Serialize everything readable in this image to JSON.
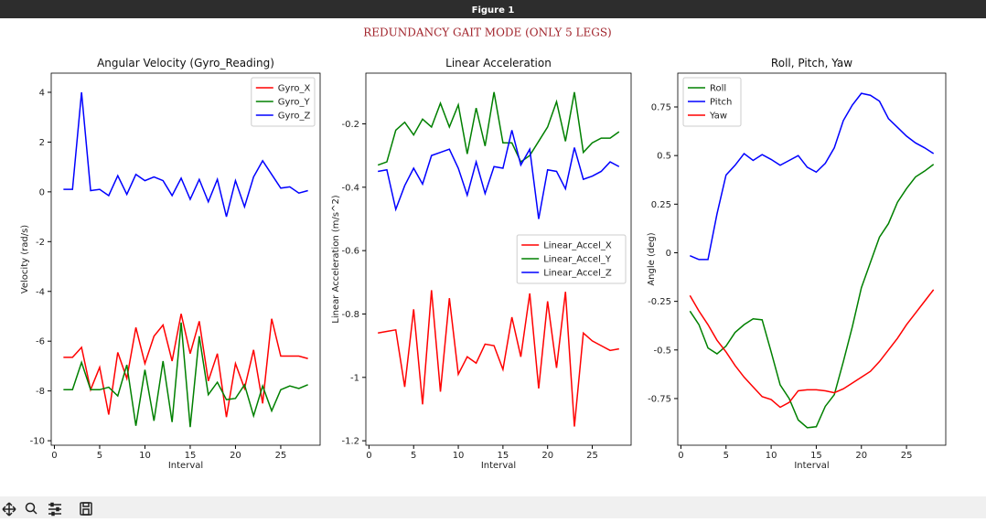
{
  "window_title": "Figure 1",
  "suptitle": "REDUNDANCY GAIT MODE (ONLY 5 LEGS)",
  "chart_data": [
    {
      "type": "line",
      "title": "Angular Velocity (Gyro_Reading)",
      "xlabel": "Interval",
      "ylabel": "Velocity (rad/s)",
      "x": [
        1,
        2,
        3,
        4,
        5,
        6,
        7,
        8,
        9,
        10,
        11,
        12,
        13,
        14,
        15,
        16,
        17,
        18,
        19,
        20,
        21,
        22,
        23,
        24,
        25,
        26,
        27,
        28
      ],
      "xlim": [
        -0.35,
        29.35
      ],
      "xticks": [
        0,
        5,
        10,
        15,
        20,
        25
      ],
      "ylim": [
        -10.18,
        4.77
      ],
      "yticks": [
        -10,
        -8,
        -6,
        -4,
        -2,
        0,
        2,
        4
      ],
      "legend": "upper right",
      "series": [
        {
          "name": "Gyro_X",
          "color": "#ff0000",
          "values": [
            -6.65,
            -6.65,
            -6.25,
            -7.95,
            -7.05,
            -8.95,
            -6.45,
            -7.5,
            -5.45,
            -6.9,
            -5.8,
            -5.35,
            -6.8,
            -4.9,
            -6.5,
            -5.2,
            -7.6,
            -6.5,
            -9.05,
            -6.9,
            -7.9,
            -6.35,
            -8.5,
            -5.1,
            -6.6,
            -6.6,
            -6.6,
            -6.7
          ]
        },
        {
          "name": "Gyro_Y",
          "color": "#008000",
          "values": [
            -7.95,
            -7.95,
            -6.85,
            -7.95,
            -7.95,
            -7.85,
            -8.2,
            -6.95,
            -9.4,
            -7.15,
            -9.2,
            -6.8,
            -9.25,
            -5.25,
            -9.45,
            -5.8,
            -8.15,
            -7.65,
            -8.35,
            -8.3,
            -7.75,
            -9.0,
            -7.8,
            -8.8,
            -7.95,
            -7.8,
            -7.9,
            -7.75
          ]
        },
        {
          "name": "Gyro_Z",
          "color": "#0000ff",
          "values": [
            0.1,
            0.1,
            4.0,
            0.05,
            0.1,
            -0.15,
            0.65,
            -0.1,
            0.7,
            0.45,
            0.6,
            0.45,
            -0.15,
            0.55,
            -0.3,
            0.5,
            -0.4,
            0.5,
            -1.0,
            0.45,
            -0.6,
            0.6,
            1.25,
            0.7,
            0.15,
            0.2,
            -0.05,
            0.05
          ]
        }
      ]
    },
    {
      "type": "line",
      "title": "Linear Acceleration",
      "xlabel": "Interval",
      "ylabel": "Linear Acceleration (m/s^2)",
      "x": [
        1,
        2,
        3,
        4,
        5,
        6,
        7,
        8,
        9,
        10,
        11,
        12,
        13,
        14,
        15,
        16,
        17,
        18,
        19,
        20,
        21,
        22,
        23,
        24,
        25,
        26,
        27,
        28
      ],
      "xlim": [
        -0.35,
        29.35
      ],
      "xticks": [
        0,
        5,
        10,
        15,
        20,
        25
      ],
      "ylim": [
        -1.214,
        -0.04
      ],
      "yticks": [
        -1.2,
        -1.0,
        -0.8,
        -0.6,
        -0.4,
        -0.2
      ],
      "legend": "center right",
      "series": [
        {
          "name": "Linear_Accel_X",
          "color": "#ff0000",
          "values": [
            -0.86,
            -0.855,
            -0.85,
            -1.03,
            -0.785,
            -1.085,
            -0.725,
            -1.045,
            -0.75,
            -0.99,
            -0.935,
            -0.955,
            -0.895,
            -0.9,
            -0.975,
            -0.81,
            -0.935,
            -0.735,
            -1.035,
            -0.76,
            -0.97,
            -0.73,
            -1.155,
            -0.86,
            -0.885,
            -0.9,
            -0.915,
            -0.91
          ]
        },
        {
          "name": "Linear_Accel_Y",
          "color": "#008000",
          "values": [
            -0.33,
            -0.32,
            -0.22,
            -0.195,
            -0.235,
            -0.185,
            -0.21,
            -0.135,
            -0.21,
            -0.14,
            -0.295,
            -0.15,
            -0.27,
            -0.1,
            -0.26,
            -0.26,
            -0.32,
            -0.3,
            -0.255,
            -0.21,
            -0.13,
            -0.255,
            -0.1,
            -0.29,
            -0.26,
            -0.245,
            -0.245,
            -0.225
          ]
        },
        {
          "name": "Linear_Accel_Z",
          "color": "#0000ff",
          "values": [
            -0.35,
            -0.345,
            -0.47,
            -0.395,
            -0.34,
            -0.39,
            -0.3,
            -0.29,
            -0.28,
            -0.34,
            -0.425,
            -0.32,
            -0.42,
            -0.335,
            -0.34,
            -0.22,
            -0.33,
            -0.28,
            -0.5,
            -0.345,
            -0.35,
            -0.405,
            -0.275,
            -0.375,
            -0.365,
            -0.35,
            -0.32,
            -0.335
          ]
        }
      ]
    },
    {
      "type": "line",
      "title": "Roll, Pitch, Yaw",
      "xlabel": "Interval",
      "ylabel": "Angle (deg)",
      "x": [
        1,
        2,
        3,
        4,
        5,
        6,
        7,
        8,
        9,
        10,
        11,
        12,
        13,
        14,
        15,
        16,
        17,
        18,
        19,
        20,
        21,
        22,
        23,
        24,
        25,
        26,
        27,
        28
      ],
      "xlim": [
        -0.35,
        29.35
      ],
      "xticks": [
        0,
        5,
        10,
        15,
        20,
        25
      ],
      "ylim": [
        -0.99,
        0.924
      ],
      "yticks": [
        -0.75,
        -0.5,
        -0.25,
        0,
        0.25,
        0.5,
        0.75
      ],
      "legend": "upper left",
      "series": [
        {
          "name": "Roll",
          "color": "#008000",
          "values": [
            -0.3,
            -0.37,
            -0.49,
            -0.52,
            -0.48,
            -0.41,
            -0.37,
            -0.34,
            -0.345,
            -0.51,
            -0.68,
            -0.75,
            -0.86,
            -0.9,
            -0.895,
            -0.79,
            -0.73,
            -0.56,
            -0.38,
            -0.18,
            -0.05,
            0.08,
            0.15,
            0.26,
            0.33,
            0.39,
            0.42,
            0.455
          ]
        },
        {
          "name": "Pitch",
          "color": "#0000ff",
          "values": [
            -0.015,
            -0.035,
            -0.035,
            0.2,
            0.4,
            0.45,
            0.51,
            0.475,
            0.505,
            0.48,
            0.45,
            0.475,
            0.5,
            0.44,
            0.415,
            0.46,
            0.54,
            0.68,
            0.76,
            0.82,
            0.81,
            0.78,
            0.69,
            0.645,
            0.6,
            0.565,
            0.54,
            0.51
          ]
        },
        {
          "name": "Yaw",
          "color": "#ff0000",
          "values": [
            -0.22,
            -0.3,
            -0.37,
            -0.45,
            -0.51,
            -0.58,
            -0.64,
            -0.69,
            -0.74,
            -0.755,
            -0.795,
            -0.77,
            -0.71,
            -0.705,
            -0.705,
            -0.71,
            -0.72,
            -0.7,
            -0.67,
            -0.64,
            -0.61,
            -0.56,
            -0.5,
            -0.44,
            -0.37,
            -0.31,
            -0.25,
            -0.19
          ]
        }
      ]
    }
  ]
}
